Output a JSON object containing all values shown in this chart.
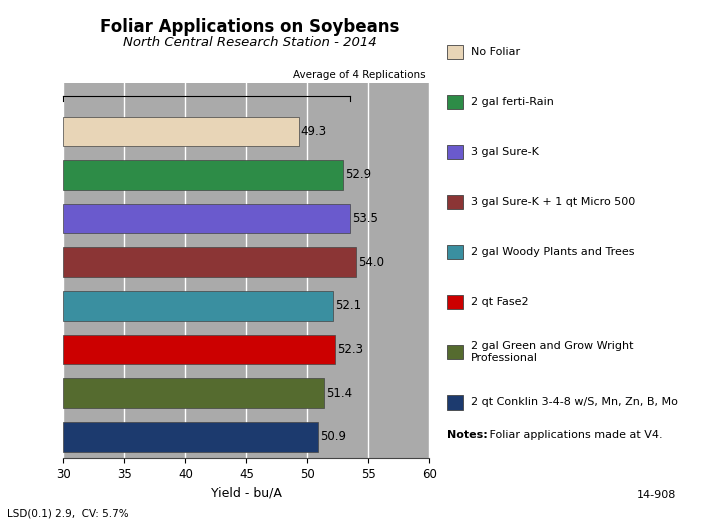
{
  "title": "Foliar Applications on Soybeans",
  "subtitle": "North Central Research Station - 2014",
  "xlabel": "Yield - bu/A",
  "categories": [
    "No Foliar",
    "2 gal ferti-Rain",
    "3 gal Sure-K",
    "3 gal Sure-K + 1 qt Micro 500",
    "2 gal Woody Plants and Trees",
    "2 qt Fase2",
    "2 gal Green and Grow Wright\nProfessional",
    "2 qt Conklin 3-4-8 w/S, Mn, Zn, B, Mo"
  ],
  "legend_labels": [
    "No Foliar",
    "2 gal ferti-Rain",
    "3 gal Sure-K",
    "3 gal Sure-K + 1 qt Micro 500",
    "2 gal Woody Plants and Trees",
    "2 qt Fase2",
    "2 gal Green and Grow Wright\nProfessional",
    "2 qt Conklin 3-4-8 w/S, Mn, Zn, B, Mo"
  ],
  "values": [
    49.3,
    52.9,
    53.5,
    54.0,
    52.1,
    52.3,
    51.4,
    50.9
  ],
  "colors": [
    "#e8d5b7",
    "#2d8c47",
    "#6a5acd",
    "#8b3535",
    "#3a8fa0",
    "#cc0000",
    "#556b2f",
    "#1c3a6e"
  ],
  "legend_colors": [
    "#e8d5b7",
    "#2d8c47",
    "#5b4faa",
    "#aa2222",
    "#3a8fa0",
    "#aa2222",
    "#4a5e22",
    "#1c3a6e"
  ],
  "xlim": [
    30,
    60
  ],
  "xticks": [
    30,
    35,
    40,
    45,
    50,
    55,
    60
  ],
  "header_label": "Average of 4 Replications",
  "notes_bold": "Notes:",
  "notes_regular": " Foliar applications made at V4.",
  "footnote": "14-908",
  "lsd_note": "LSD(0.1) 2.9,  CV: 5.7%",
  "background_color": "#ffffff",
  "plot_bg_color": "#aaaaaa",
  "bar_edge_color": "#444444",
  "grid_color": "#cccccc"
}
